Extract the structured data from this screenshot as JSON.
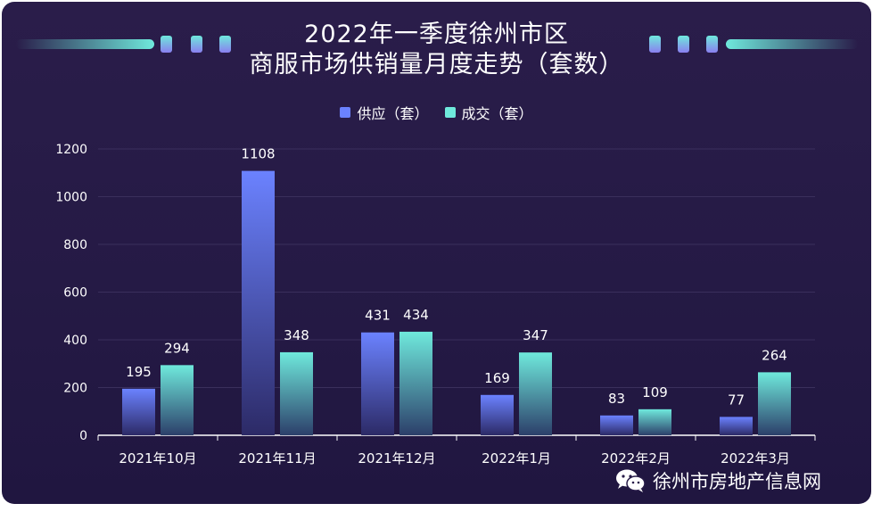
{
  "title": {
    "line1": "2022年一季度徐州市区",
    "line2": "商服市场供销量月度走势（套数）"
  },
  "legend": {
    "supply": "供应（套）",
    "deal": "成交（套）"
  },
  "watermark": {
    "text": "徐州市房地产信息网",
    "icon": "wechat-icon"
  },
  "colors": {
    "background": "#271b48",
    "supply_top": "#6b82ff",
    "supply_bottom": "#2c2a66",
    "deal_top": "#6fe9dc",
    "deal_bottom": "#2c3f6a",
    "axis": "#ffffff",
    "gridline": "#3a2f5c"
  },
  "chart_data": {
    "type": "bar",
    "categories": [
      "2021年10月",
      "2021年11月",
      "2021年12月",
      "2022年1月",
      "2022年2月",
      "2022年3月"
    ],
    "series": [
      {
        "name": "供应（套）",
        "values": [
          195,
          1108,
          431,
          169,
          83,
          77
        ]
      },
      {
        "name": "成交（套）",
        "values": [
          294,
          348,
          434,
          347,
          109,
          264
        ]
      }
    ],
    "yticks": [
      0,
      200,
      400,
      600,
      800,
      1000,
      1200
    ],
    "ylim": [
      0,
      1200
    ],
    "grid": true,
    "legend_position": "top-center"
  }
}
